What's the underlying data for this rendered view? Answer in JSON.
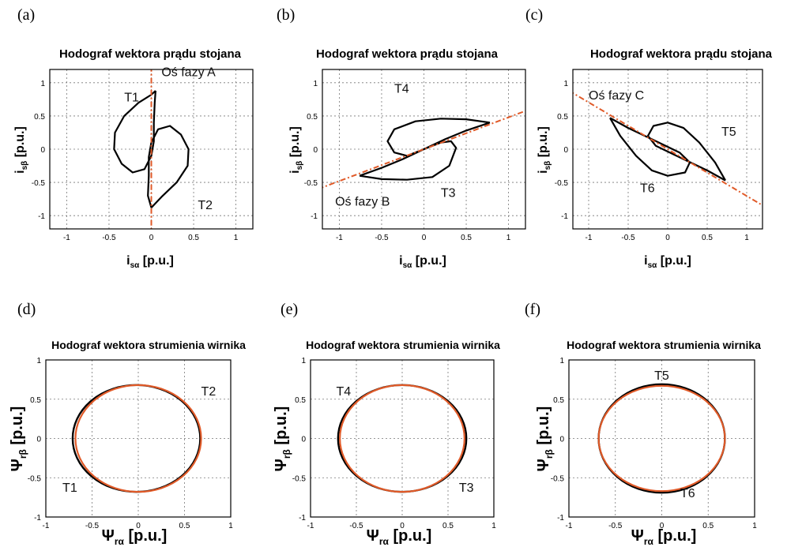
{
  "colors": {
    "measured": "#000000",
    "reference": "#e05a28",
    "axis_line": "#e05a28"
  },
  "chart_data": [
    {
      "panel": "(a)",
      "type": "line",
      "title": "Hodograf wektora prądu stojana",
      "xlabel_sym": "i",
      "xlabel_sub": "sα",
      "xlabel_unit": " [p.u.]",
      "ylabel_sym": "i",
      "ylabel_sub": "sβ",
      "ylabel_unit": " [p.u.]",
      "xlim": [
        -1.2,
        1.2
      ],
      "ylim": [
        -1.2,
        1.2
      ],
      "xticks": [
        -1,
        -0.5,
        0,
        0.5,
        1
      ],
      "yticks": [
        -1,
        -0.5,
        0,
        0.5,
        1
      ],
      "grid": true,
      "series": [
        {
          "style": "measured",
          "values": [
            [
              0.05,
              0.88
            ],
            [
              0.0,
              0.82
            ],
            [
              -0.15,
              0.7
            ],
            [
              -0.32,
              0.5
            ],
            [
              -0.43,
              0.25
            ],
            [
              -0.44,
              0.0
            ],
            [
              -0.35,
              -0.22
            ],
            [
              -0.22,
              -0.35
            ],
            [
              -0.08,
              -0.3
            ],
            [
              0.0,
              -0.1
            ],
            [
              0.03,
              0.12
            ],
            [
              0.03,
              0.4
            ],
            [
              0.04,
              0.7
            ],
            [
              0.05,
              0.88
            ]
          ]
        },
        {
          "style": "measured",
          "values": [
            [
              0.0,
              -0.88
            ],
            [
              0.12,
              -0.72
            ],
            [
              0.3,
              -0.5
            ],
            [
              0.43,
              -0.25
            ],
            [
              0.44,
              0.0
            ],
            [
              0.35,
              0.22
            ],
            [
              0.22,
              0.35
            ],
            [
              0.08,
              0.3
            ],
            [
              0.0,
              0.1
            ],
            [
              -0.03,
              -0.12
            ],
            [
              -0.03,
              -0.4
            ],
            [
              -0.04,
              -0.7
            ],
            [
              0.0,
              -0.88
            ]
          ]
        },
        {
          "style": "axis",
          "values": [
            [
              0.0,
              1.25
            ],
            [
              0.0,
              -1.25
            ]
          ]
        }
      ],
      "annotations": [
        {
          "text": "T1",
          "x": -0.32,
          "y": 0.72
        },
        {
          "text": "Oś fazy A",
          "x": 0.12,
          "y": 1.1
        },
        {
          "text": "T2",
          "x": 0.55,
          "y": -0.9
        }
      ]
    },
    {
      "panel": "(b)",
      "type": "line",
      "title": "Hodograf wektora prądu stojana",
      "xlabel_sym": "i",
      "xlabel_sub": "sα",
      "xlabel_unit": " [p.u.]",
      "ylabel_sym": "i",
      "ylabel_sub": "sβ",
      "ylabel_unit": " [p.u.]",
      "xlim": [
        -1.2,
        1.2
      ],
      "ylim": [
        -1.2,
        1.2
      ],
      "xticks": [
        -1,
        -0.5,
        0,
        0.5,
        1
      ],
      "yticks": [
        -1,
        -0.5,
        0,
        0.5,
        1
      ],
      "grid": true,
      "series": [
        {
          "style": "measured",
          "values": [
            [
              0.78,
              0.4
            ],
            [
              0.5,
              0.45
            ],
            [
              0.2,
              0.46
            ],
            [
              -0.1,
              0.42
            ],
            [
              -0.35,
              0.3
            ],
            [
              -0.43,
              0.12
            ],
            [
              -0.35,
              -0.05
            ],
            [
              -0.2,
              -0.1
            ],
            [
              0.0,
              0.0
            ],
            [
              0.25,
              0.15
            ],
            [
              0.5,
              0.28
            ],
            [
              0.78,
              0.4
            ]
          ]
        },
        {
          "style": "measured",
          "values": [
            [
              -0.76,
              -0.4
            ],
            [
              -0.5,
              -0.45
            ],
            [
              -0.2,
              -0.46
            ],
            [
              0.1,
              -0.42
            ],
            [
              0.3,
              -0.25
            ],
            [
              0.38,
              0.02
            ],
            [
              0.32,
              0.12
            ],
            [
              0.2,
              0.1
            ],
            [
              0.0,
              0.0
            ],
            [
              -0.25,
              -0.15
            ],
            [
              -0.5,
              -0.28
            ],
            [
              -0.76,
              -0.4
            ]
          ]
        },
        {
          "style": "axis",
          "values": [
            [
              -1.25,
              -0.6
            ],
            [
              1.25,
              0.6
            ]
          ]
        }
      ],
      "annotations": [
        {
          "text": "T4",
          "x": -0.35,
          "y": 0.85
        },
        {
          "text": "Oś fazy B",
          "x": -1.05,
          "y": -0.85
        },
        {
          "text": "T3",
          "x": 0.2,
          "y": -0.72
        }
      ]
    },
    {
      "panel": "(c)",
      "type": "line",
      "title": "Hodograf wektora prądu stojana",
      "xlabel_sym": "i",
      "xlabel_sub": "sα",
      "xlabel_unit": " [p.u.]",
      "ylabel_sym": "i",
      "ylabel_sub": "sβ",
      "ylabel_unit": " [p.u.]",
      "xlim": [
        -1.2,
        1.2
      ],
      "ylim": [
        -1.2,
        1.2
      ],
      "xticks": [
        -1,
        -0.5,
        0,
        0.5,
        1
      ],
      "yticks": [
        -1,
        -0.5,
        0,
        0.5,
        1
      ],
      "grid": true,
      "series": [
        {
          "style": "measured",
          "values": [
            [
              0.73,
              -0.47
            ],
            [
              0.6,
              -0.2
            ],
            [
              0.4,
              0.1
            ],
            [
              0.2,
              0.32
            ],
            [
              0.0,
              0.4
            ],
            [
              -0.18,
              0.35
            ],
            [
              -0.25,
              0.2
            ],
            [
              -0.15,
              0.05
            ],
            [
              0.2,
              -0.15
            ],
            [
              0.5,
              -0.32
            ],
            [
              0.73,
              -0.47
            ]
          ]
        },
        {
          "style": "measured",
          "values": [
            [
              -0.73,
              0.47
            ],
            [
              -0.6,
              0.2
            ],
            [
              -0.4,
              -0.1
            ],
            [
              -0.2,
              -0.32
            ],
            [
              0.0,
              -0.4
            ],
            [
              0.22,
              -0.35
            ],
            [
              0.28,
              -0.2
            ],
            [
              0.15,
              -0.05
            ],
            [
              -0.2,
              0.15
            ],
            [
              -0.5,
              0.32
            ],
            [
              -0.73,
              0.47
            ]
          ]
        },
        {
          "style": "axis",
          "values": [
            [
              -1.25,
              0.88
            ],
            [
              1.25,
              -0.88
            ]
          ]
        }
      ],
      "annotations": [
        {
          "text": "Oś fazy C",
          "x": -1.0,
          "y": 0.75
        },
        {
          "text": "T5",
          "x": 0.68,
          "y": 0.2
        },
        {
          "text": "T6",
          "x": -0.35,
          "y": -0.65
        }
      ]
    },
    {
      "panel": "(d)",
      "type": "line",
      "title": "Hodograf wektora strumienia wirnika",
      "xlabel_sym": "Ψ",
      "xlabel_sub": "rα",
      "xlabel_unit": " [p.u.]",
      "ylabel_sym": "Ψ",
      "ylabel_sub": "rβ",
      "ylabel_unit": " [p.u.]",
      "xlim": [
        -1,
        1
      ],
      "ylim": [
        -1,
        1
      ],
      "xticks": [
        -1,
        -0.5,
        0,
        0.5,
        1
      ],
      "yticks": [
        -1,
        -0.5,
        0,
        0.5,
        1
      ],
      "grid": true,
      "series": [
        {
          "style": "measured",
          "ellipse": {
            "cx": 0,
            "cy": 0,
            "rx": 0.69,
            "ry": 0.68,
            "dx": -0.02,
            "dy": 0
          }
        },
        {
          "style": "reference",
          "ellipse": {
            "cx": 0,
            "cy": 0,
            "rx": 0.68,
            "ry": 0.68,
            "dx": 0,
            "dy": 0
          }
        }
      ],
      "annotations": [
        {
          "text": "T2",
          "x": 0.68,
          "y": 0.55
        },
        {
          "text": "T1",
          "x": -0.82,
          "y": -0.68
        }
      ]
    },
    {
      "panel": "(e)",
      "type": "line",
      "title": "Hodograf wektora strumienia wirnika",
      "xlabel_sym": "Ψ",
      "xlabel_sub": "rα",
      "xlabel_unit": " [p.u.]",
      "ylabel_sym": "Ψ",
      "ylabel_sub": "rβ",
      "ylabel_unit": " [p.u.]",
      "xlim": [
        -1,
        1
      ],
      "ylim": [
        -1,
        1
      ],
      "xticks": [
        -1,
        -0.5,
        0,
        0.5,
        1
      ],
      "yticks": [
        -1,
        -0.5,
        0,
        0.5,
        1
      ],
      "grid": true,
      "series": [
        {
          "style": "measured",
          "ellipse": {
            "cx": 0,
            "cy": 0,
            "rx": 0.7,
            "ry": 0.68,
            "dx": 0,
            "dy": 0
          }
        },
        {
          "style": "reference",
          "ellipse": {
            "cx": 0,
            "cy": 0,
            "rx": 0.68,
            "ry": 0.68,
            "dx": 0,
            "dy": 0
          }
        }
      ],
      "annotations": [
        {
          "text": "T4",
          "x": -0.72,
          "y": 0.55
        },
        {
          "text": "T3",
          "x": 0.62,
          "y": -0.68
        }
      ]
    },
    {
      "panel": "(f)",
      "type": "line",
      "title": "Hodograf wektora strumienia wirnika",
      "xlabel_sym": "Ψ",
      "xlabel_sub": "rα",
      "xlabel_unit": " [p.u.]",
      "ylabel_sym": "Ψ",
      "ylabel_sub": "rβ",
      "ylabel_unit": " [p.u.]",
      "xlim": [
        -1,
        1
      ],
      "ylim": [
        -1,
        1
      ],
      "xticks": [
        -1,
        -0.5,
        0,
        0.5,
        1
      ],
      "yticks": [
        -1,
        -0.5,
        0,
        0.5,
        1
      ],
      "grid": true,
      "series": [
        {
          "style": "measured",
          "ellipse": {
            "cx": 0,
            "cy": 0,
            "rx": 0.68,
            "ry": 0.69,
            "dx": 0,
            "dy": 0
          }
        },
        {
          "style": "reference",
          "ellipse": {
            "cx": 0,
            "cy": 0,
            "rx": 0.68,
            "ry": 0.67,
            "dx": 0,
            "dy": 0
          }
        }
      ],
      "annotations": [
        {
          "text": "T5",
          "x": -0.08,
          "y": 0.75
        },
        {
          "text": "T6",
          "x": 0.2,
          "y": -0.75
        }
      ]
    }
  ]
}
